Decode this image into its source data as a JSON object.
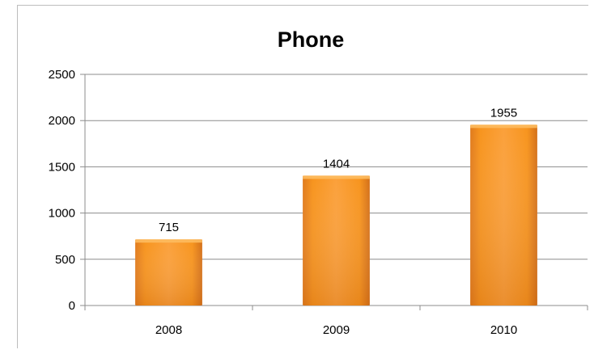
{
  "chart_data": {
    "type": "bar",
    "title": "Phone",
    "categories": [
      "2008",
      "2009",
      "2010"
    ],
    "values": [
      715,
      1404,
      1955
    ],
    "data_labels": [
      "715",
      "1404",
      "1955"
    ],
    "ylim": [
      0,
      2500
    ],
    "yticks": [
      0,
      500,
      1000,
      1500,
      2000,
      2500
    ],
    "ytick_labels": [
      "0",
      "500",
      "1000",
      "1500",
      "2000",
      "2500"
    ],
    "grid": true,
    "legend": false,
    "colors": {
      "bar": "#f7941d",
      "bar_light": "#fdbb5f",
      "bar_dark": "#d9731a",
      "grid": "#8c8c8c",
      "axis": "#8c8c8c"
    }
  }
}
